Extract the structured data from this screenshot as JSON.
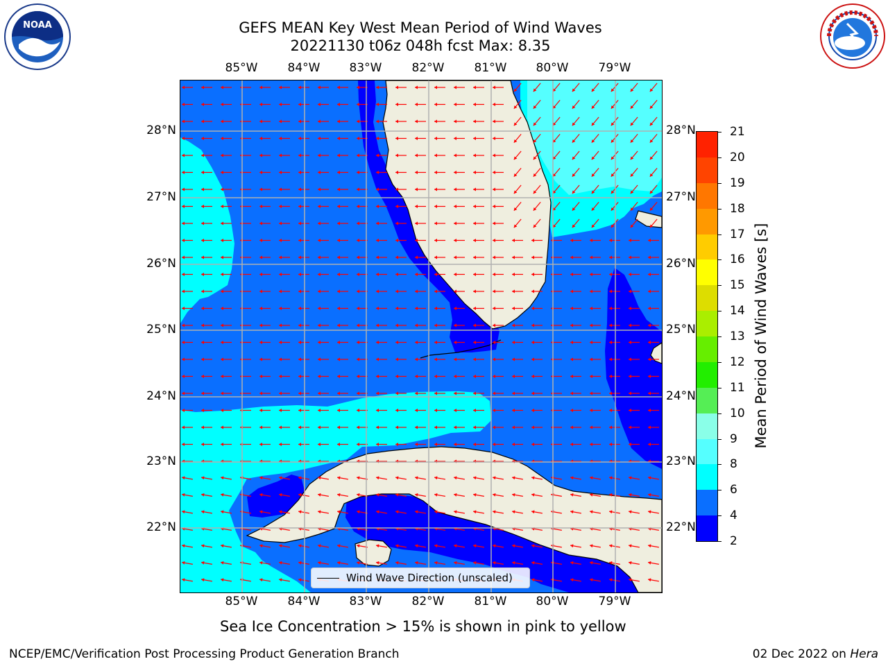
{
  "title": {
    "line1": "GEFS MEAN Key West Mean Period of Wind Waves",
    "line2": "20221130 t06z 048h fcst   Max: 8.35"
  },
  "axes": {
    "lon_labels": [
      "85°W",
      "84°W",
      "83°W",
      "82°W",
      "81°W",
      "80°W",
      "79°W"
    ],
    "lat_labels": [
      "28°N",
      "27°N",
      "26°N",
      "25°N",
      "24°N",
      "23°N",
      "22°N"
    ]
  },
  "legend": {
    "label": "Wind Wave Direction (unscaled)"
  },
  "colorbar": {
    "title": "Mean Period of Wind Waves [s]",
    "tick_labels": [
      "2",
      "4",
      "6",
      "8",
      "9",
      "10",
      "11",
      "12",
      "13",
      "14",
      "15",
      "16",
      "17",
      "18",
      "19",
      "20",
      "21"
    ],
    "colors": [
      "#0000ff",
      "#0a6fff",
      "#00ffff",
      "#55ffff",
      "#8affe8",
      "#55ee55",
      "#22ee00",
      "#66ee00",
      "#aaee00",
      "#dddd00",
      "#ffff00",
      "#ffcc00",
      "#ff9900",
      "#ff7700",
      "#ff4400",
      "#ff2200"
    ]
  },
  "map_colors": {
    "land": "#efeedf",
    "band_2_4": "#0000ff",
    "band_4_6": "#0a6fff",
    "band_6_8": "#00ffff",
    "band_8_9": "#55ffff",
    "arrows": "#ff0000",
    "grid": "#b0b0b0"
  },
  "footnote": "Sea Ice Concentration > 15% is shown in pink to yellow",
  "credit": "NCEP/EMC/Verification Post Processing Product Generation Branch",
  "date": {
    "text": "02 Dec 2022 on ",
    "machine": "Hera"
  },
  "logos": {
    "noaa": "NOAA",
    "nws": "NATIONAL WEATHER SERVICE"
  }
}
